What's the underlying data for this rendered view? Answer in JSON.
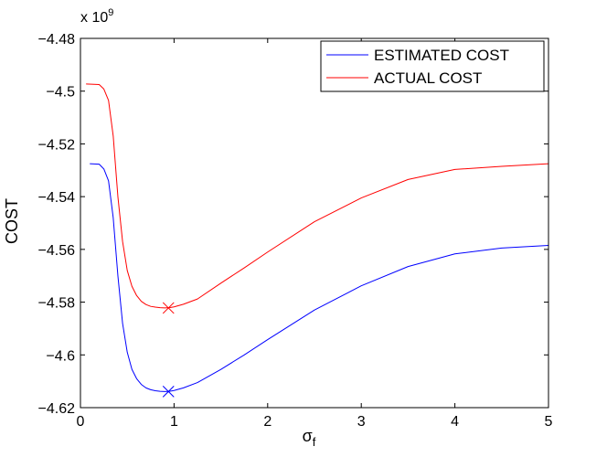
{
  "chart_data": {
    "type": "line",
    "xlabel": "σ",
    "xlabel_subscript": "f",
    "ylabel": "COST",
    "y_exponent_label": "x 10",
    "y_exponent_power": "9",
    "xlim": [
      0,
      5
    ],
    "ylim": [
      -4.62,
      -4.48
    ],
    "x_ticks": [
      0,
      1,
      2,
      3,
      4,
      5
    ],
    "x_tick_labels": [
      "0",
      "1",
      "2",
      "3",
      "4",
      "5"
    ],
    "y_ticks": [
      -4.48,
      -4.5,
      -4.52,
      -4.54,
      -4.56,
      -4.58,
      -4.6,
      -4.62
    ],
    "y_tick_labels": [
      "−4.48",
      "−4.5",
      "−4.52",
      "−4.54",
      "−4.56",
      "−4.58",
      "−4.6",
      "−4.62"
    ],
    "grid": false,
    "legend_position": "top-right",
    "series": [
      {
        "name": "ESTIMATED COST",
        "color": "#0000ff",
        "x": [
          0.1,
          0.2,
          0.25,
          0.3,
          0.35,
          0.4,
          0.45,
          0.5,
          0.55,
          0.6,
          0.65,
          0.7,
          0.75,
          0.8,
          0.85,
          0.9,
          0.95,
          1.0,
          1.1,
          1.25,
          1.5,
          1.75,
          2.0,
          2.5,
          3.0,
          3.5,
          4.0,
          4.5,
          5.0
        ],
        "y": [
          -4.5275,
          -4.5277,
          -4.5295,
          -4.534,
          -4.548,
          -4.57,
          -4.588,
          -4.599,
          -4.6055,
          -4.609,
          -4.6112,
          -4.6125,
          -4.6132,
          -4.6136,
          -4.6138,
          -4.6139,
          -4.6138,
          -4.6135,
          -4.6125,
          -4.6105,
          -4.6055,
          -4.6,
          -4.5942,
          -4.583,
          -4.5738,
          -4.5665,
          -4.5617,
          -4.5595,
          -4.5585
        ]
      },
      {
        "name": "ACTUAL COST",
        "color": "#ff0000",
        "x": [
          0.06,
          0.2,
          0.25,
          0.3,
          0.35,
          0.4,
          0.45,
          0.5,
          0.55,
          0.6,
          0.65,
          0.7,
          0.75,
          0.8,
          0.85,
          0.9,
          0.95,
          1.0,
          1.1,
          1.25,
          1.5,
          1.75,
          2.0,
          2.5,
          3.0,
          3.5,
          4.0,
          4.5,
          5.0
        ],
        "y": [
          -4.4973,
          -4.4975,
          -4.4992,
          -4.5035,
          -4.517,
          -4.54,
          -4.557,
          -4.568,
          -4.574,
          -4.5775,
          -4.5797,
          -4.5809,
          -4.5816,
          -4.5819,
          -4.5821,
          -4.5822,
          -4.5821,
          -4.5818,
          -4.5808,
          -4.5788,
          -4.5728,
          -4.567,
          -4.561,
          -4.5495,
          -4.5405,
          -4.5335,
          -4.5297,
          -4.5285,
          -4.5275
        ]
      }
    ],
    "markers": [
      {
        "series": "ESTIMATED COST",
        "x": 0.94,
        "y": -4.6139,
        "symbol": "x",
        "color": "#0000ff"
      },
      {
        "series": "ACTUAL COST",
        "x": 0.94,
        "y": -4.5822,
        "symbol": "x",
        "color": "#ff0000"
      }
    ]
  }
}
